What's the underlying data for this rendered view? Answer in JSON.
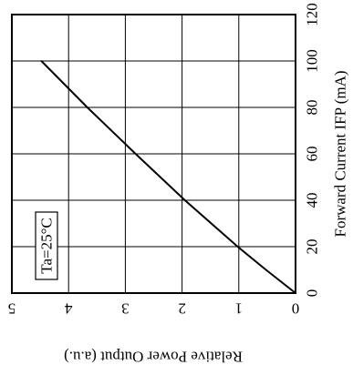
{
  "chart_data": {
    "type": "line",
    "xlabel": "Forward Current  IFP (mA)",
    "ylabel": "Relative Power Output  (a.u.)",
    "xlim": [
      0,
      120
    ],
    "ylim": [
      0,
      5
    ],
    "x_ticks": [
      "0",
      "20",
      "40",
      "60",
      "80",
      "100",
      "120"
    ],
    "y_ticks": [
      "0",
      "1",
      "2",
      "3",
      "4",
      "5"
    ],
    "grid": true,
    "annotation": "Ta=25°C",
    "series": [
      {
        "x": [
          0,
          10,
          20,
          40,
          60,
          80,
          100
        ],
        "values": [
          0,
          0.52,
          1.02,
          1.95,
          2.82,
          3.67,
          4.48
        ]
      }
    ]
  }
}
